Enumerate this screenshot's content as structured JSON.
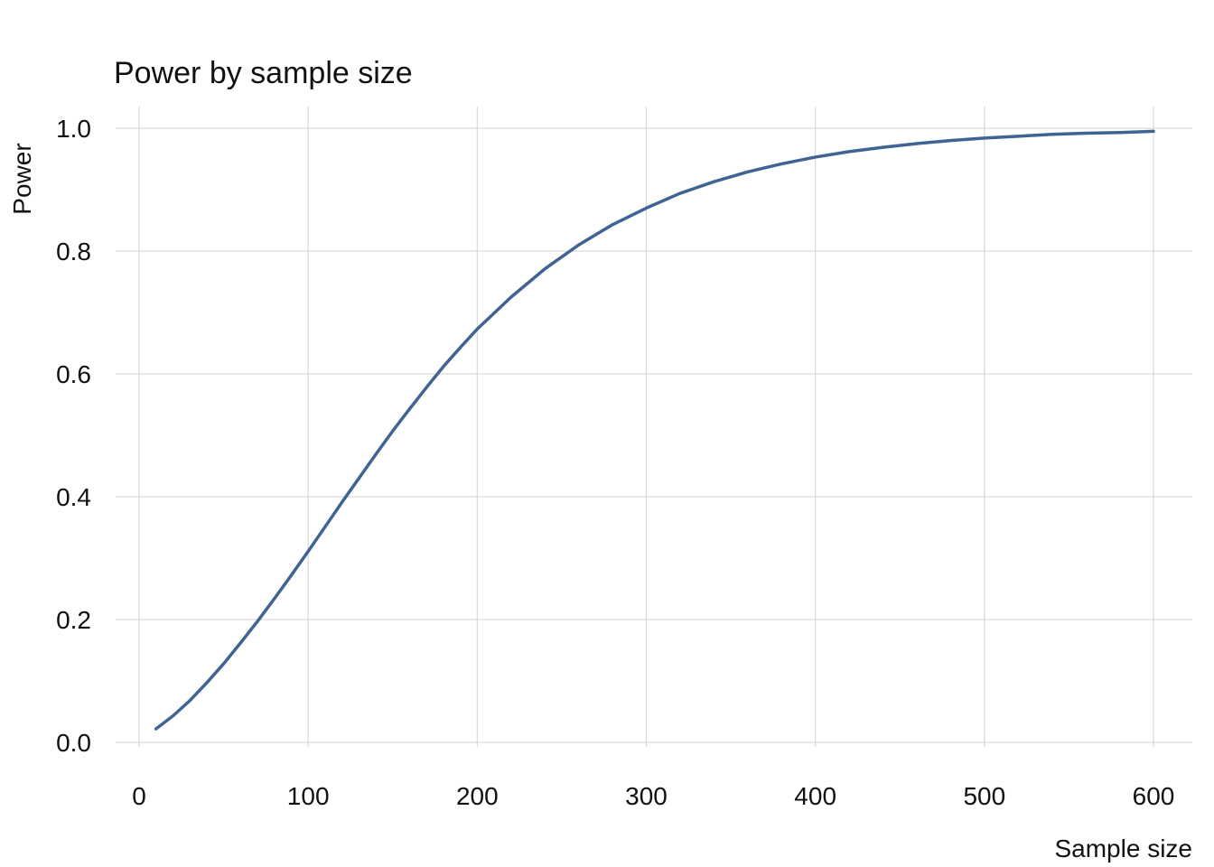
{
  "chart_data": {
    "type": "line",
    "title": "Power by sample size",
    "xlabel": "Sample size",
    "ylabel": "Power",
    "xlim": [
      0,
      600
    ],
    "ylim": [
      0.0,
      1.0
    ],
    "x_ticks": [
      0,
      100,
      200,
      300,
      400,
      500,
      600
    ],
    "x_tick_labels": [
      "0",
      "100",
      "200",
      "300",
      "400",
      "500",
      "600"
    ],
    "y_ticks": [
      0.0,
      0.2,
      0.4,
      0.6,
      0.8,
      1.0
    ],
    "y_tick_labels": [
      "0.0",
      "0.2",
      "0.4",
      "0.6",
      "0.8",
      "1.0"
    ],
    "grid": true,
    "legend": "none",
    "colors": {
      "line": "#3f6393",
      "grid": "#d9d9d9"
    },
    "series": [
      {
        "x": [
          10,
          20,
          30,
          40,
          50,
          60,
          70,
          80,
          90,
          100,
          110,
          120,
          130,
          140,
          150,
          160,
          170,
          180,
          190,
          200,
          220,
          240,
          260,
          280,
          300,
          320,
          340,
          360,
          380,
          400,
          420,
          440,
          460,
          480,
          500,
          520,
          540,
          560,
          580,
          600
        ],
        "values": [
          0.022,
          0.043,
          0.068,
          0.097,
          0.128,
          0.162,
          0.197,
          0.234,
          0.272,
          0.311,
          0.351,
          0.391,
          0.43,
          0.469,
          0.507,
          0.543,
          0.578,
          0.612,
          0.643,
          0.673,
          0.725,
          0.771,
          0.81,
          0.843,
          0.87,
          0.894,
          0.913,
          0.929,
          0.942,
          0.953,
          0.962,
          0.969,
          0.975,
          0.98,
          0.984,
          0.987,
          0.99,
          0.992,
          0.993,
          0.995
        ]
      }
    ]
  }
}
